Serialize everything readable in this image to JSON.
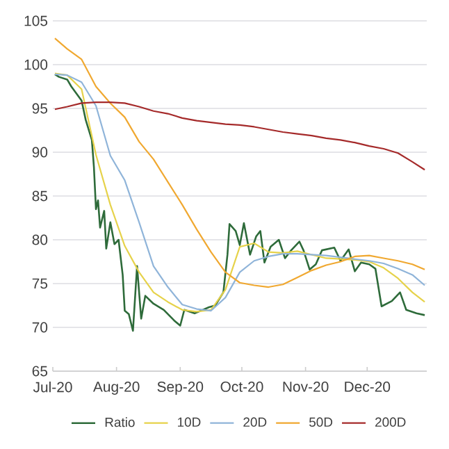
{
  "chart_data": {
    "type": "line",
    "xlim": [
      "2020-07-01",
      "2020-12-30"
    ],
    "ylim": [
      65,
      105
    ],
    "xticks": [
      {
        "value": "2020-07-01",
        "label": "Jul-20"
      },
      {
        "value": "2020-08-01",
        "label": "Aug-20"
      },
      {
        "value": "2020-09-01",
        "label": "Sep-20"
      },
      {
        "value": "2020-10-01",
        "label": "Oct-20"
      },
      {
        "value": "2020-11-01",
        "label": "Nov-20"
      },
      {
        "value": "2020-12-01",
        "label": "Dec-20"
      }
    ],
    "yticks": [
      65,
      70,
      75,
      80,
      85,
      90,
      95,
      100,
      105
    ],
    "grid": "y",
    "legend": "bottom",
    "series": [
      {
        "name": "Ratio",
        "color": "#2e6b3a",
        "x": [
          "2020-07-02",
          "2020-07-04",
          "2020-07-08",
          "2020-07-10",
          "2020-07-15",
          "2020-07-17",
          "2020-07-20",
          "2020-07-21",
          "2020-07-22",
          "2020-07-23",
          "2020-07-24",
          "2020-07-26",
          "2020-07-27",
          "2020-07-29",
          "2020-07-31",
          "2020-08-02",
          "2020-08-04",
          "2020-08-05",
          "2020-08-07",
          "2020-08-09",
          "2020-08-11",
          "2020-08-13",
          "2020-08-15",
          "2020-08-19",
          "2020-08-24",
          "2020-08-29",
          "2020-09-01",
          "2020-09-03",
          "2020-09-08",
          "2020-09-15",
          "2020-09-18",
          "2020-09-22",
          "2020-09-24",
          "2020-09-25",
          "2020-09-28",
          "2020-09-30",
          "2020-10-02",
          "2020-10-05",
          "2020-10-08",
          "2020-10-10",
          "2020-10-12",
          "2020-10-15",
          "2020-10-19",
          "2020-10-22",
          "2020-10-25",
          "2020-10-29",
          "2020-10-31",
          "2020-11-03",
          "2020-11-06",
          "2020-11-09",
          "2020-11-15",
          "2020-11-18",
          "2020-11-22",
          "2020-11-25",
          "2020-11-28",
          "2020-12-02",
          "2020-12-05",
          "2020-12-08",
          "2020-12-13",
          "2020-12-17",
          "2020-12-20",
          "2020-12-25",
          "2020-12-29"
        ],
        "values": [
          98.9,
          98.6,
          98.3,
          97.5,
          95.9,
          93.7,
          91.4,
          88.3,
          83.5,
          84.5,
          81.4,
          83.3,
          79,
          82,
          79.5,
          80,
          76,
          71.9,
          71.5,
          69.6,
          77,
          71,
          73.6,
          72.7,
          72,
          70.8,
          70.2,
          72,
          71.6,
          72.3,
          72.5,
          74,
          78.3,
          81.8,
          81,
          79.4,
          81.9,
          78.3,
          80.4,
          81,
          77.4,
          79.2,
          80,
          77.9,
          78.8,
          79.8,
          78.8,
          76.6,
          77.2,
          78.8,
          79.1,
          77.6,
          78.9,
          76.4,
          77.4,
          77.2,
          76.7,
          72.4,
          73,
          74,
          72,
          71.6,
          71.4
        ]
      },
      {
        "name": "10D",
        "color": "#e6d24a",
        "x": [
          "2020-07-02",
          "2020-07-08",
          "2020-07-15",
          "2020-07-22",
          "2020-07-29",
          "2020-08-05",
          "2020-08-12",
          "2020-08-19",
          "2020-08-26",
          "2020-09-02",
          "2020-09-09",
          "2020-09-16",
          "2020-09-23",
          "2020-09-30",
          "2020-10-07",
          "2020-10-14",
          "2020-10-21",
          "2020-10-28",
          "2020-11-04",
          "2020-11-11",
          "2020-11-18",
          "2020-11-25",
          "2020-12-02",
          "2020-12-09",
          "2020-12-16",
          "2020-12-23",
          "2020-12-29"
        ],
        "values": [
          99.0,
          98.8,
          97.2,
          89.7,
          84,
          79.3,
          76.3,
          74.0,
          72.9,
          72.0,
          71.8,
          72.0,
          74.3,
          79.2,
          79.6,
          78.6,
          78.5,
          78.7,
          78.3,
          77.9,
          77.8,
          77.7,
          77.5,
          76.8,
          75.6,
          74.0,
          72.9
        ]
      },
      {
        "name": "20D",
        "color": "#8fb4d9",
        "x": [
          "2020-07-02",
          "2020-07-08",
          "2020-07-15",
          "2020-07-22",
          "2020-07-29",
          "2020-08-05",
          "2020-08-12",
          "2020-08-19",
          "2020-08-26",
          "2020-09-02",
          "2020-09-09",
          "2020-09-16",
          "2020-09-23",
          "2020-09-30",
          "2020-10-07",
          "2020-10-14",
          "2020-10-21",
          "2020-10-28",
          "2020-11-04",
          "2020-11-11",
          "2020-11-18",
          "2020-11-25",
          "2020-12-02",
          "2020-12-09",
          "2020-12-16",
          "2020-12-23",
          "2020-12-29"
        ],
        "values": [
          98.9,
          98.8,
          98.0,
          95.3,
          89.6,
          86.8,
          82.0,
          77.0,
          74.6,
          72.6,
          72.1,
          71.9,
          73.4,
          76.3,
          77.6,
          78.1,
          78.4,
          78.4,
          78.3,
          78.2,
          78.0,
          77.8,
          77.6,
          77.3,
          76.7,
          76.0,
          74.8
        ]
      },
      {
        "name": "50D",
        "color": "#f0a830",
        "x": [
          "2020-07-02",
          "2020-07-08",
          "2020-07-15",
          "2020-07-22",
          "2020-07-29",
          "2020-08-05",
          "2020-08-12",
          "2020-08-19",
          "2020-08-26",
          "2020-09-02",
          "2020-09-09",
          "2020-09-16",
          "2020-09-23",
          "2020-09-30",
          "2020-10-07",
          "2020-10-14",
          "2020-10-21",
          "2020-10-28",
          "2020-11-04",
          "2020-11-11",
          "2020-11-18",
          "2020-11-25",
          "2020-12-02",
          "2020-12-09",
          "2020-12-16",
          "2020-12-23",
          "2020-12-29"
        ],
        "values": [
          103.0,
          101.8,
          100.6,
          97.5,
          95.6,
          94.0,
          91.2,
          89.2,
          86.6,
          84.0,
          81.2,
          78.6,
          76.3,
          75.1,
          74.8,
          74.6,
          74.9,
          75.7,
          76.5,
          77.1,
          77.5,
          78.1,
          78.2,
          77.9,
          77.6,
          77.2,
          76.6
        ]
      },
      {
        "name": "200D",
        "color": "#a52a2a",
        "x": [
          "2020-07-02",
          "2020-07-08",
          "2020-07-15",
          "2020-07-22",
          "2020-07-29",
          "2020-08-05",
          "2020-08-12",
          "2020-08-19",
          "2020-08-26",
          "2020-09-02",
          "2020-09-09",
          "2020-09-16",
          "2020-09-23",
          "2020-09-30",
          "2020-10-07",
          "2020-10-14",
          "2020-10-21",
          "2020-10-28",
          "2020-11-04",
          "2020-11-11",
          "2020-11-18",
          "2020-11-25",
          "2020-12-02",
          "2020-12-09",
          "2020-12-16",
          "2020-12-23",
          "2020-12-29"
        ],
        "values": [
          94.9,
          95.2,
          95.6,
          95.7,
          95.7,
          95.6,
          95.2,
          94.7,
          94.4,
          93.9,
          93.6,
          93.4,
          93.2,
          93.1,
          92.9,
          92.6,
          92.3,
          92.1,
          91.9,
          91.6,
          91.4,
          91.1,
          90.7,
          90.4,
          89.9,
          88.9,
          88.0
        ]
      }
    ]
  }
}
